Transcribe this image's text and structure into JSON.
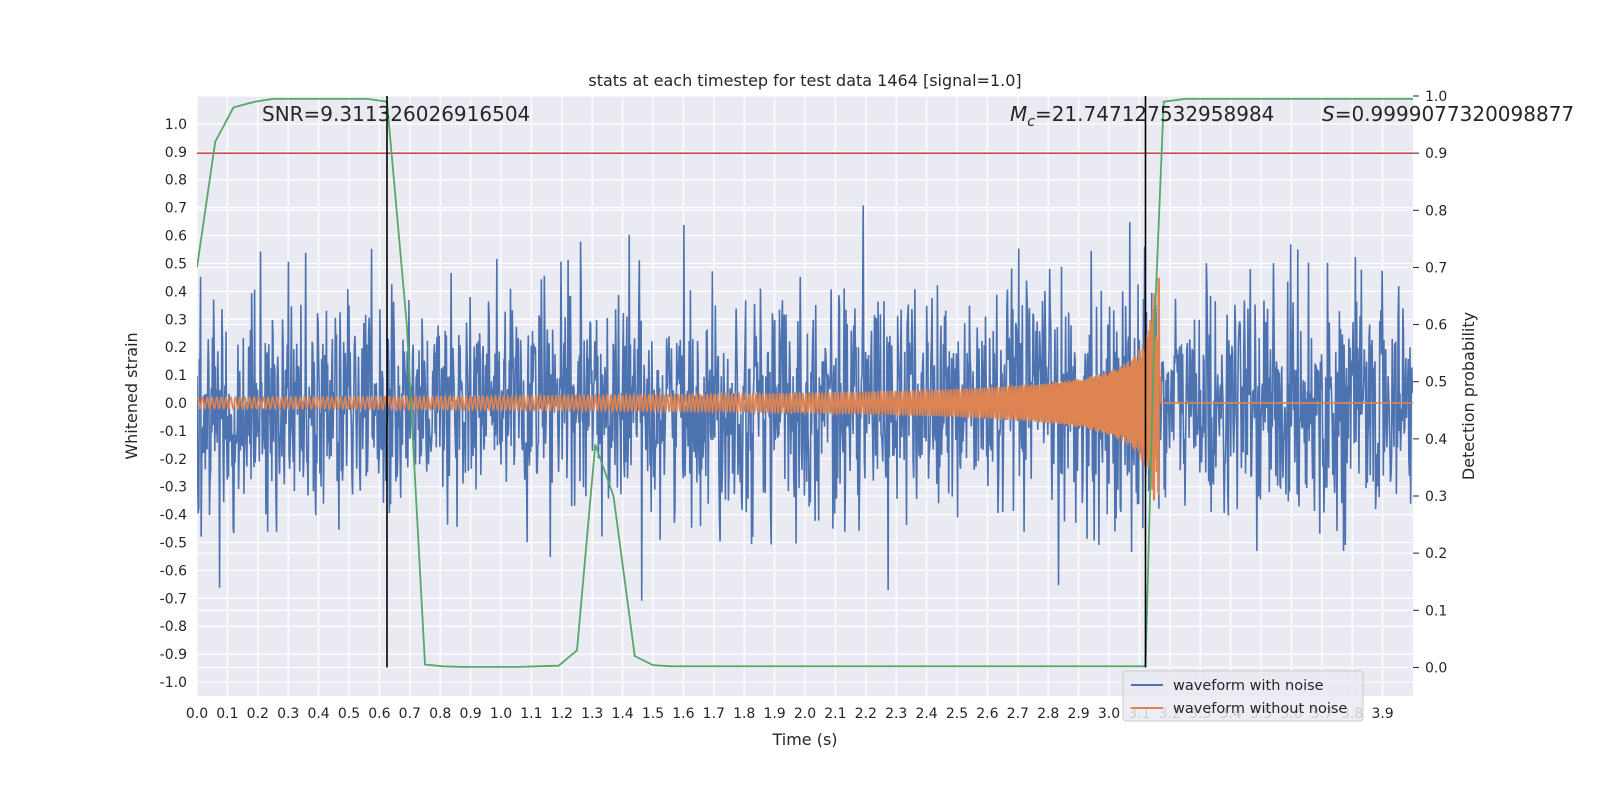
{
  "chart_data": {
    "type": "line",
    "title": "stats at each timestep for test data 1464 [signal=1.0]",
    "xlabel": "Time (s)",
    "ylabel": "Whitened strain",
    "y2label": "Detection probability",
    "xlim": [
      0.0,
      4.0
    ],
    "ylim": [
      -1.05,
      1.1
    ],
    "y2lim": [
      -0.05,
      1.0
    ],
    "xticks": [
      0.0,
      0.1,
      0.2,
      0.3,
      0.4,
      0.5,
      0.6,
      0.7,
      0.8,
      0.9,
      1.0,
      1.1,
      1.2,
      1.3,
      1.4,
      1.5,
      1.6,
      1.7,
      1.8,
      1.9,
      2.0,
      2.1,
      2.2,
      2.3,
      2.4,
      2.5,
      2.6,
      2.7,
      2.8,
      2.9,
      3.0,
      3.1,
      3.2,
      3.3,
      3.4,
      3.5,
      3.6,
      3.7,
      3.8,
      3.9
    ],
    "yticks": [
      -1.0,
      -0.9,
      -0.8,
      -0.7,
      -0.6,
      -0.5,
      -0.4,
      -0.3,
      -0.2,
      -0.1,
      0.0,
      0.1,
      0.2,
      0.3,
      0.4,
      0.5,
      0.6,
      0.7,
      0.8,
      0.9,
      1.0
    ],
    "y2ticks": [
      0.0,
      0.1,
      0.2,
      0.3,
      0.4,
      0.5,
      0.6,
      0.7,
      0.8,
      0.9,
      1.0
    ],
    "grid": true,
    "legend_position": "lower-right",
    "annotations": {
      "snr": "SNR=9.311326026916504",
      "mc_symbol": "M",
      "mc_sub": "c",
      "mc_value": "=21.747127532958984",
      "s_symbol": "S",
      "s_value": "=0.9999077320098877"
    },
    "series": [
      {
        "name": "waveform with noise",
        "color": "#4c72b0",
        "axis": "left",
        "description_samples": 2048,
        "noise_rms": 0.2
      },
      {
        "name": "waveform without noise",
        "color": "#dd8452",
        "axis": "left",
        "chirp_start_s": 0.0,
        "merger_time_s": 3.17,
        "start_amplitude": 0.02,
        "peak_amplitude": 0.45
      },
      {
        "color": "#55a868",
        "axis": "right",
        "x": [
          0.0,
          0.06,
          0.12,
          0.19,
          0.25,
          0.31,
          0.37,
          0.44,
          0.5,
          0.56,
          0.625,
          0.69,
          0.75,
          0.81,
          0.87,
          0.94,
          1.0,
          1.06,
          1.12,
          1.19,
          1.25,
          1.31,
          1.37,
          1.44,
          1.5,
          1.56,
          1.62,
          1.69,
          2.0,
          2.5,
          2.8,
          3.0,
          3.12,
          3.15,
          3.18,
          3.25,
          3.5,
          3.75,
          4.0
        ],
        "y": [
          0.7,
          0.92,
          0.98,
          0.99,
          0.995,
          0.995,
          0.995,
          0.995,
          0.995,
          0.995,
          0.99,
          0.6,
          0.005,
          0.002,
          0.001,
          0.001,
          0.001,
          0.001,
          0.002,
          0.003,
          0.03,
          0.39,
          0.3,
          0.02,
          0.004,
          0.002,
          0.002,
          0.002,
          0.002,
          0.002,
          0.002,
          0.002,
          0.002,
          0.6,
          0.99,
          0.995,
          0.995,
          0.995,
          0.995
        ]
      },
      {
        "color": "#c44e52",
        "axis": "right",
        "type": "hline",
        "y": 0.9
      }
    ],
    "vlines": [
      {
        "x": 0.625,
        "color": "#000000",
        "y2_from": 0.0,
        "y2_to": 1.0
      },
      {
        "x": 3.12,
        "color": "#000000",
        "y2_from": 0.0,
        "y2_to": 1.0
      }
    ]
  }
}
